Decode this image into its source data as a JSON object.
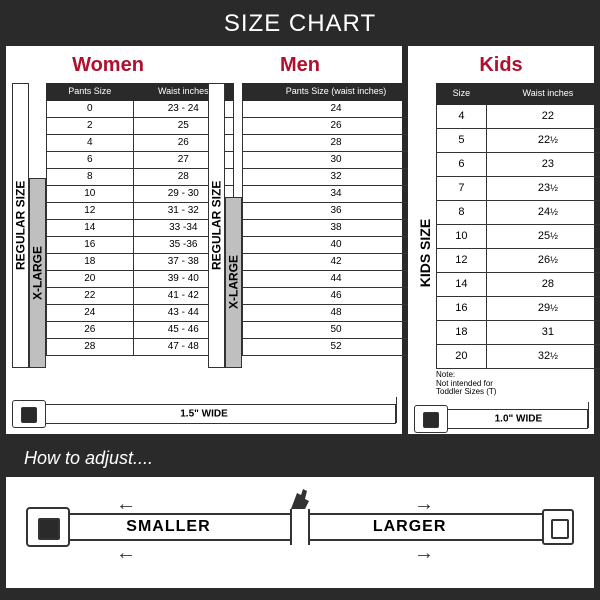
{
  "title": "SIZE CHART",
  "colors": {
    "background": "#2a2a2a",
    "heading": "#b01030",
    "xl_fill": "#bfbfbf",
    "panel": "#ffffff",
    "border": "#333333"
  },
  "women": {
    "heading": "Women",
    "col1": "Pants Size",
    "col2": "Waist inches",
    "regular_label": "REGULAR SIZE",
    "xlarge_label": "X-LARGE",
    "regular_rows": 5,
    "xlarge_start": 5,
    "rows": [
      {
        "size": "0",
        "waist": "23 - 24"
      },
      {
        "size": "2",
        "waist": "25"
      },
      {
        "size": "4",
        "waist": "26"
      },
      {
        "size": "6",
        "waist": "27"
      },
      {
        "size": "8",
        "waist": "28"
      },
      {
        "size": "10",
        "waist": "29 - 30"
      },
      {
        "size": "12",
        "waist": "31 - 32"
      },
      {
        "size": "14",
        "waist": "33 -34"
      },
      {
        "size": "16",
        "waist": "35 -36"
      },
      {
        "size": "18",
        "waist": "37 - 38"
      },
      {
        "size": "20",
        "waist": "39 - 40"
      },
      {
        "size": "22",
        "waist": "41 - 42"
      },
      {
        "size": "24",
        "waist": "43 - 44"
      },
      {
        "size": "26",
        "waist": "45 - 46"
      },
      {
        "size": "28",
        "waist": "47 - 48"
      }
    ]
  },
  "men": {
    "heading": "Men",
    "col1": "Pants Size (waist inches)",
    "regular_label": "REGULAR SIZE",
    "xlarge_label": "X-LARGE",
    "regular_rows": 6,
    "xlarge_start": 6,
    "rows": [
      {
        "size": "24"
      },
      {
        "size": "26"
      },
      {
        "size": "28"
      },
      {
        "size": "30"
      },
      {
        "size": "32"
      },
      {
        "size": "34"
      },
      {
        "size": "36"
      },
      {
        "size": "38"
      },
      {
        "size": "40"
      },
      {
        "size": "42"
      },
      {
        "size": "44"
      },
      {
        "size": "46"
      },
      {
        "size": "48"
      },
      {
        "size": "50"
      },
      {
        "size": "52"
      }
    ]
  },
  "kids": {
    "heading": "Kids",
    "col1": "Size",
    "col2": "Waist inches",
    "side_label": "KIDS SIZE",
    "note": "Note:\nNot intended for\nToddler Sizes (T)",
    "rows": [
      {
        "size": "4",
        "waist": "22",
        "half": false
      },
      {
        "size": "5",
        "waist": "22",
        "half": true
      },
      {
        "size": "6",
        "waist": "23",
        "half": false
      },
      {
        "size": "7",
        "waist": "23",
        "half": true
      },
      {
        "size": "8",
        "waist": "24",
        "half": true
      },
      {
        "size": "10",
        "waist": "25",
        "half": true
      },
      {
        "size": "12",
        "waist": "26",
        "half": true
      },
      {
        "size": "14",
        "waist": "28",
        "half": false
      },
      {
        "size": "16",
        "waist": "29",
        "half": true
      },
      {
        "size": "18",
        "waist": "31",
        "half": false
      },
      {
        "size": "20",
        "waist": "32",
        "half": true
      }
    ]
  },
  "belt_adult": {
    "width_label": "1.5\" WIDE"
  },
  "belt_kids": {
    "width_label": "1.0\" WIDE"
  },
  "adjust": {
    "heading": "How to adjust....",
    "smaller": "SMALLER",
    "larger": "LARGER"
  }
}
